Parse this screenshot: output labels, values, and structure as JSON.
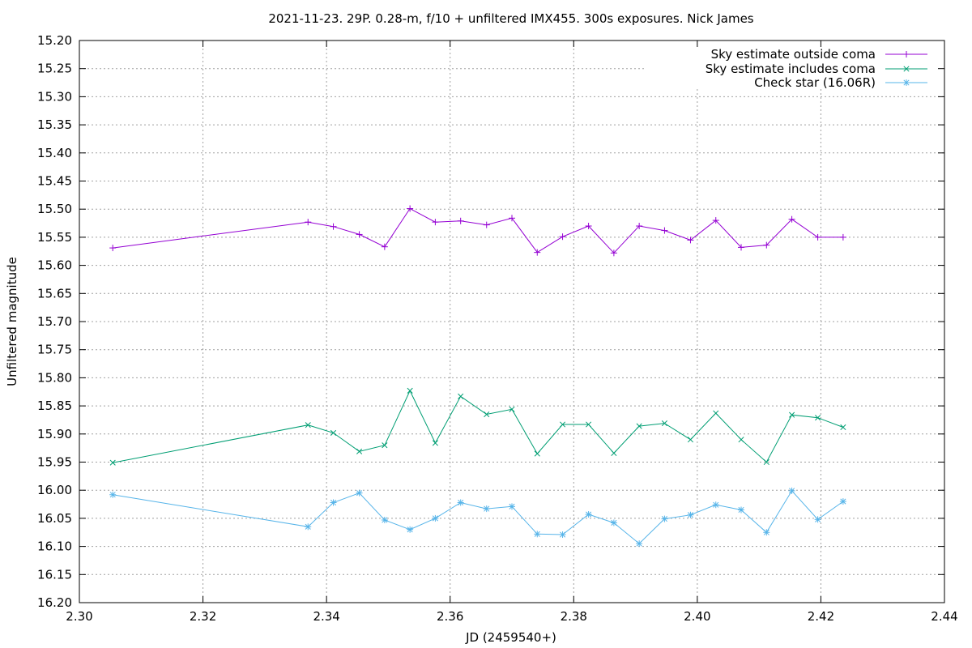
{
  "chart_data": {
    "type": "line",
    "title": "2021-11-23. 29P. 0.28-m, f/10 + unfiltered IMX455. 300s exposures. Nick James",
    "xlabel": "JD (2459540+)",
    "ylabel": "Unfiltered magnitude",
    "xlim": [
      2.3,
      2.44
    ],
    "ylim": [
      15.2,
      16.2
    ],
    "y_inverted": true,
    "grid": true,
    "legend_position": "top-right",
    "x_ticks": [
      "2.30",
      "2.32",
      "2.34",
      "2.36",
      "2.38",
      "2.40",
      "2.42",
      "2.44"
    ],
    "y_ticks": [
      "15.20",
      "15.25",
      "15.30",
      "15.35",
      "15.40",
      "15.45",
      "15.50",
      "15.55",
      "15.60",
      "15.65",
      "15.70",
      "15.75",
      "15.80",
      "15.85",
      "15.90",
      "15.95",
      "16.00",
      "16.05",
      "16.10",
      "16.15",
      "16.20"
    ],
    "x": [
      2.3054,
      2.337,
      2.3411,
      2.3453,
      2.3494,
      2.3535,
      2.3576,
      2.3617,
      2.3659,
      2.37,
      2.3741,
      2.3782,
      2.3824,
      2.3865,
      2.3906,
      2.3947,
      2.3989,
      2.403,
      2.4071,
      2.4112,
      2.4153,
      2.4195,
      2.4236
    ],
    "series": [
      {
        "name": "Sky estimate outside coma",
        "color": "#9400d3",
        "marker": "plus",
        "values": [
          15.569,
          15.523,
          15.531,
          15.545,
          15.567,
          15.499,
          15.523,
          15.521,
          15.528,
          15.516,
          15.577,
          15.549,
          15.53,
          15.578,
          15.53,
          15.538,
          15.555,
          15.52,
          15.568,
          15.564,
          15.518,
          15.55,
          15.55
        ]
      },
      {
        "name": "Sky estimate includes coma",
        "color": "#009e73",
        "marker": "cross",
        "values": [
          15.951,
          15.884,
          15.898,
          15.931,
          15.92,
          15.823,
          15.916,
          15.833,
          15.865,
          15.856,
          15.935,
          15.883,
          15.883,
          15.934,
          15.886,
          15.881,
          15.91,
          15.863,
          15.91,
          15.95,
          15.866,
          15.871,
          15.888
        ]
      },
      {
        "name": "Check star (16.06R)",
        "color": "#56b4e9",
        "marker": "star",
        "values": [
          16.008,
          16.065,
          16.022,
          16.005,
          16.053,
          16.07,
          16.05,
          16.022,
          16.033,
          16.029,
          16.078,
          16.079,
          16.043,
          16.058,
          16.095,
          16.051,
          16.044,
          16.026,
          16.035,
          16.075,
          16.001,
          16.052,
          16.02
        ]
      }
    ]
  }
}
